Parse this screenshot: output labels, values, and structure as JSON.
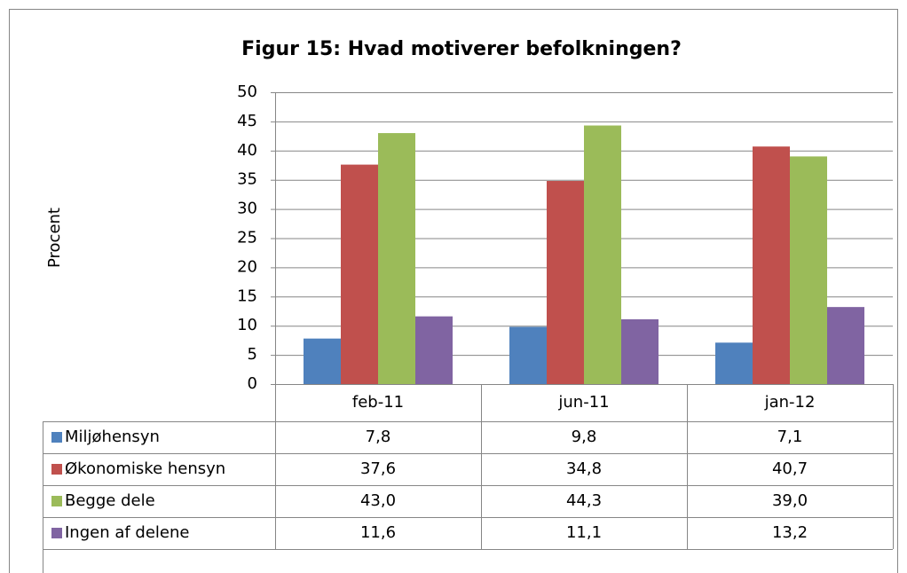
{
  "chart_data": {
    "type": "bar",
    "title": "Figur 15: Hvad motiverer befolkningen?",
    "y_label": "Procent",
    "categories": [
      "feb-11",
      "jun-11",
      "jan-12"
    ],
    "series": [
      {
        "name": "Miljøhensyn",
        "color": "#4f81bd",
        "values": [
          7.8,
          9.8,
          7.1
        ],
        "value_labels": [
          "7,8",
          "9,8",
          "7,1"
        ]
      },
      {
        "name": "Økonomiske hensyn",
        "color": "#c0504d",
        "values": [
          37.6,
          34.8,
          40.7
        ],
        "value_labels": [
          "37,6",
          "34,8",
          "40,7"
        ]
      },
      {
        "name": "Begge dele",
        "color": "#9bbb59",
        "values": [
          43.0,
          44.3,
          39.0
        ],
        "value_labels": [
          "43,0",
          "44,3",
          "39,0"
        ]
      },
      {
        "name": "Ingen af delene",
        "color": "#8064a2",
        "values": [
          11.6,
          11.1,
          13.2
        ],
        "value_labels": [
          "11,6",
          "11,1",
          "13,2"
        ]
      }
    ],
    "ylim": [
      0,
      50
    ],
    "yticks": [
      0,
      5,
      10,
      15,
      20,
      25,
      30,
      35,
      40,
      45,
      50
    ],
    "grid": true,
    "data_table": true
  }
}
